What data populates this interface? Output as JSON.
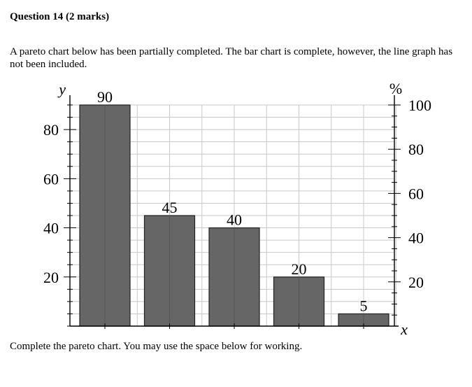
{
  "question": {
    "heading": "Question 14 (2 marks)",
    "intro": "A pareto chart below has been partially completed. The bar chart is complete, however, the line graph has not been included.",
    "footer": "Complete the pareto chart. You may use the space below for working."
  },
  "chart_data": {
    "type": "bar",
    "values": [
      90,
      45,
      40,
      20,
      5
    ],
    "data_labels": [
      "90",
      "45",
      "40",
      "20",
      "5"
    ],
    "ylabel": "y",
    "y2label": "%",
    "xlabel": "x",
    "ylim": [
      0,
      90
    ],
    "yticks": [
      20,
      40,
      60,
      80
    ],
    "ytick_labels": [
      "20",
      "40",
      "60",
      "80"
    ],
    "y2lim": [
      0,
      100
    ],
    "y2ticks": [
      20,
      40,
      60,
      80,
      100
    ],
    "y2tick_labels": [
      "20",
      "40",
      "60",
      "80",
      "100"
    ],
    "grid": true,
    "bar_color": "#666666"
  }
}
